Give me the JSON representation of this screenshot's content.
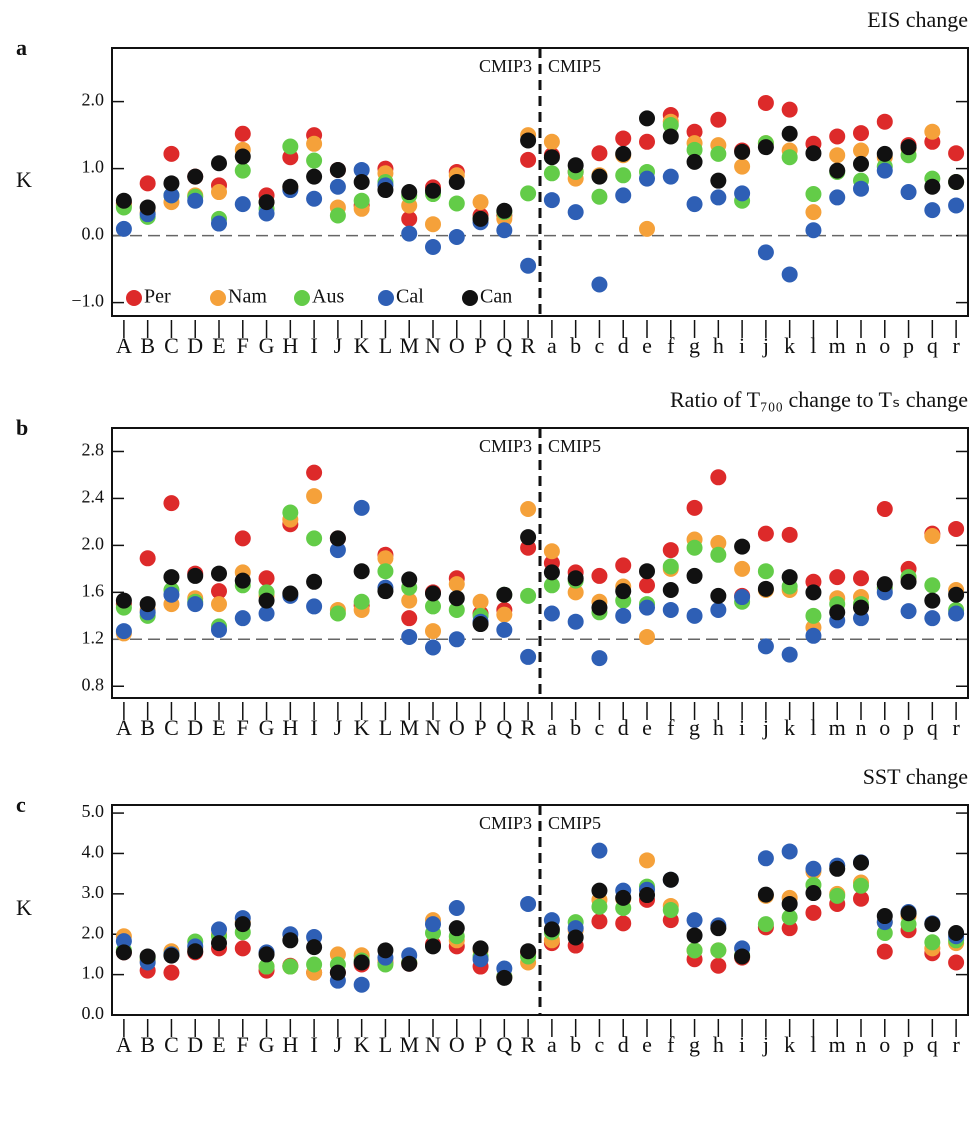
{
  "chart_data": [
    {
      "type": "scatter",
      "panel": "a",
      "title": "EIS change",
      "ylabel": "K",
      "categories": [
        "A",
        "B",
        "C",
        "D",
        "E",
        "F",
        "G",
        "H",
        "I",
        "J",
        "K",
        "L",
        "M",
        "N",
        "O",
        "P",
        "Q",
        "R",
        "a",
        "b",
        "c",
        "d",
        "e",
        "f",
        "g",
        "h",
        "i",
        "j",
        "k",
        "l",
        "m",
        "n",
        "o",
        "p",
        "q",
        "r"
      ],
      "groups": [
        {
          "name": "CMIP3",
          "count": 18
        },
        {
          "name": "CMIP5",
          "count": 18
        }
      ],
      "ylim": [
        -1.2,
        2.8
      ],
      "yticks": [
        {
          "value": -1,
          "label": "−1.0"
        },
        {
          "value": 0,
          "label": "0.0"
        },
        {
          "value": 1,
          "label": "1.0"
        },
        {
          "value": 2,
          "label": "2.0"
        }
      ],
      "hline": 0,
      "legend": "lower left",
      "series": [
        {
          "name": "Per",
          "color": "#dd2a2a",
          "values": [
            0.48,
            0.78,
            1.22,
            0.88,
            0.75,
            1.52,
            0.6,
            1.17,
            1.5,
            0.98,
            0.45,
            1.0,
            0.25,
            0.72,
            0.95,
            0.3,
            0.3,
            1.13,
            1.2,
            0.95,
            1.23,
            1.45,
            1.4,
            1.8,
            1.55,
            1.73,
            1.27,
            1.98,
            1.88,
            1.37,
            1.48,
            1.53,
            1.7,
            1.35,
            1.4,
            1.23
          ]
        },
        {
          "name": "Nam",
          "color": "#f5a13a",
          "values": [
            0.45,
            0.35,
            0.5,
            0.6,
            0.65,
            1.28,
            0.5,
            0.72,
            1.37,
            0.42,
            0.4,
            0.93,
            0.45,
            0.17,
            0.9,
            0.5,
            0.25,
            1.5,
            1.4,
            0.85,
            0.9,
            1.2,
            0.1,
            1.7,
            1.38,
            1.35,
            1.03,
            1.38,
            1.27,
            0.35,
            1.2,
            1.27,
            1.17,
            1.3,
            1.55,
            0.8
          ]
        },
        {
          "name": "Aus",
          "color": "#63cc48",
          "values": [
            0.42,
            0.28,
            0.6,
            0.58,
            0.25,
            0.97,
            0.4,
            1.33,
            1.12,
            0.3,
            0.52,
            0.8,
            0.6,
            0.62,
            0.48,
            0.25,
            0.35,
            0.63,
            0.93,
            0.95,
            0.58,
            0.9,
            0.95,
            1.65,
            1.28,
            1.22,
            0.52,
            1.38,
            1.17,
            0.62,
            0.95,
            0.82,
            1.03,
            1.2,
            0.85,
            0.8
          ]
        },
        {
          "name": "Cal",
          "color": "#2e5fb5",
          "values": [
            0.1,
            0.32,
            0.6,
            0.52,
            0.18,
            0.47,
            0.33,
            0.68,
            0.55,
            0.73,
            0.98,
            0.75,
            0.03,
            -0.17,
            -0.02,
            0.2,
            0.08,
            -0.45,
            0.53,
            0.35,
            -0.73,
            0.6,
            0.85,
            0.88,
            0.47,
            0.57,
            0.63,
            -0.25,
            -0.58,
            0.08,
            0.57,
            0.7,
            0.97,
            0.65,
            0.38,
            0.45
          ]
        },
        {
          "name": "Can",
          "color": "#111111",
          "values": [
            0.52,
            0.42,
            0.78,
            0.88,
            1.08,
            1.18,
            0.5,
            0.73,
            0.88,
            0.98,
            0.8,
            0.68,
            0.65,
            0.67,
            0.8,
            0.25,
            0.37,
            1.42,
            1.17,
            1.05,
            0.88,
            1.22,
            1.75,
            1.48,
            1.1,
            0.82,
            1.25,
            1.32,
            1.52,
            1.23,
            0.97,
            1.07,
            1.22,
            1.32,
            0.73,
            0.8
          ]
        }
      ]
    },
    {
      "type": "scatter",
      "panel": "b",
      "title": "Ratio of T₇₀₀ change to Tₛ change",
      "categories": [
        "A",
        "B",
        "C",
        "D",
        "E",
        "F",
        "G",
        "H",
        "I",
        "J",
        "K",
        "L",
        "M",
        "N",
        "O",
        "P",
        "Q",
        "R",
        "a",
        "b",
        "c",
        "d",
        "e",
        "f",
        "g",
        "h",
        "i",
        "j",
        "k",
        "l",
        "m",
        "n",
        "o",
        "p",
        "q",
        "r"
      ],
      "groups": [
        {
          "name": "CMIP3",
          "count": 18
        },
        {
          "name": "CMIP5",
          "count": 18
        }
      ],
      "ylim": [
        0.7,
        3.0
      ],
      "yticks": [
        0.8,
        1.2,
        1.6,
        {
          "value": 2,
          "label": "2.0"
        },
        2.4,
        2.8
      ],
      "hline": 1.2,
      "series": [
        {
          "color": "#dd2a2a",
          "values": [
            1.5,
            1.89,
            2.36,
            1.76,
            1.61,
            2.06,
            1.72,
            2.18,
            2.62,
            2.06,
            1.49,
            1.92,
            1.38,
            1.6,
            1.72,
            1.42,
            1.45,
            1.98,
            1.85,
            1.77,
            1.74,
            1.83,
            1.66,
            1.96,
            2.32,
            2.58,
            1.57,
            2.1,
            2.09,
            1.69,
            1.73,
            1.72,
            2.31,
            1.8,
            2.1,
            2.14
          ]
        },
        {
          "color": "#f5a13a",
          "values": [
            1.25,
            1.45,
            1.5,
            1.55,
            1.5,
            1.77,
            1.57,
            2.22,
            2.42,
            1.45,
            1.45,
            1.89,
            1.53,
            1.27,
            1.67,
            1.52,
            1.41,
            2.31,
            1.95,
            1.6,
            1.52,
            1.65,
            1.22,
            1.8,
            2.05,
            2.02,
            1.8,
            1.62,
            1.62,
            1.3,
            1.55,
            1.56,
            1.63,
            1.72,
            2.08,
            1.62
          ]
        },
        {
          "color": "#63cc48",
          "values": [
            1.47,
            1.4,
            1.62,
            1.52,
            1.31,
            1.66,
            1.6,
            2.28,
            2.06,
            1.42,
            1.52,
            1.78,
            1.64,
            1.48,
            1.45,
            1.4,
            1.58,
            1.57,
            1.66,
            1.7,
            1.43,
            1.53,
            1.5,
            1.82,
            1.98,
            1.92,
            1.52,
            1.78,
            1.65,
            1.4,
            1.5,
            1.5,
            1.64,
            1.73,
            1.66,
            1.45
          ]
        },
        {
          "color": "#2e5fb5",
          "values": [
            1.27,
            1.43,
            1.58,
            1.5,
            1.28,
            1.38,
            1.42,
            1.57,
            1.48,
            1.96,
            2.32,
            1.64,
            1.22,
            1.13,
            1.2,
            1.35,
            1.28,
            1.05,
            1.42,
            1.35,
            1.04,
            1.4,
            1.47,
            1.45,
            1.4,
            1.45,
            1.56,
            1.14,
            1.07,
            1.23,
            1.36,
            1.38,
            1.6,
            1.44,
            1.38,
            1.42
          ]
        },
        {
          "color": "#111111",
          "values": [
            1.53,
            1.5,
            1.73,
            1.74,
            1.76,
            1.7,
            1.53,
            1.59,
            1.69,
            2.06,
            1.78,
            1.61,
            1.71,
            1.59,
            1.55,
            1.33,
            1.58,
            2.07,
            1.77,
            1.72,
            1.47,
            1.61,
            1.78,
            1.62,
            1.74,
            1.57,
            1.99,
            1.63,
            1.73,
            1.6,
            1.43,
            1.47,
            1.67,
            1.69,
            1.53,
            1.58
          ]
        }
      ]
    },
    {
      "type": "scatter",
      "panel": "c",
      "title": "SST change",
      "ylabel": "K",
      "categories": [
        "A",
        "B",
        "C",
        "D",
        "E",
        "F",
        "G",
        "H",
        "I",
        "J",
        "K",
        "L",
        "M",
        "N",
        "O",
        "P",
        "Q",
        "R",
        "a",
        "b",
        "c",
        "d",
        "e",
        "f",
        "g",
        "h",
        "i",
        "j",
        "k",
        "l",
        "m",
        "n",
        "o",
        "p",
        "q",
        "r"
      ],
      "groups": [
        {
          "name": "CMIP3",
          "count": 18
        },
        {
          "name": "CMIP5",
          "count": 18
        }
      ],
      "ylim": [
        0,
        5.2
      ],
      "yticks": [
        {
          "value": 0,
          "label": "0.0"
        },
        {
          "value": 1,
          "label": "1.0"
        },
        {
          "value": 2,
          "label": "2.0"
        },
        {
          "value": 3,
          "label": "3.0"
        },
        {
          "value": 4,
          "label": "4.0"
        },
        {
          "value": 5,
          "label": "5.0"
        }
      ],
      "series": [
        {
          "color": "#dd2a2a",
          "values": [
            1.55,
            1.1,
            1.05,
            1.55,
            1.65,
            1.65,
            1.1,
            1.22,
            1.05,
            1.05,
            1.25,
            1.3,
            1.27,
            1.75,
            1.7,
            1.2,
            0.95,
            1.55,
            1.78,
            1.72,
            2.32,
            2.27,
            2.85,
            2.35,
            1.38,
            1.22,
            1.42,
            2.17,
            2.15,
            2.53,
            2.75,
            2.88,
            1.57,
            2.1,
            1.53,
            1.3
          ]
        },
        {
          "color": "#f5a13a",
          "values": [
            1.95,
            1.35,
            1.58,
            1.65,
            2.0,
            2.3,
            1.2,
            1.2,
            1.05,
            1.5,
            1.48,
            1.35,
            1.3,
            2.35,
            1.85,
            1.6,
            0.93,
            1.3,
            1.85,
            2.1,
            2.85,
            2.88,
            3.83,
            2.7,
            1.6,
            1.6,
            1.45,
            2.95,
            2.9,
            3.55,
            3.0,
            3.28,
            2.3,
            2.45,
            1.65,
            1.78
          ]
        },
        {
          "color": "#63cc48",
          "values": [
            1.6,
            1.4,
            1.5,
            1.82,
            1.95,
            2.05,
            1.2,
            1.2,
            1.25,
            1.25,
            1.35,
            1.25,
            1.3,
            2.03,
            1.95,
            1.45,
            0.95,
            1.45,
            2.05,
            2.3,
            2.68,
            2.65,
            3.18,
            2.6,
            1.6,
            1.6,
            1.48,
            2.25,
            2.42,
            3.22,
            2.95,
            3.2,
            2.03,
            2.25,
            1.8,
            1.85
          ]
        },
        {
          "color": "#2e5fb5",
          "values": [
            1.83,
            1.3,
            1.5,
            1.7,
            2.12,
            2.4,
            1.55,
            2.0,
            1.93,
            0.85,
            0.75,
            1.42,
            1.48,
            2.25,
            2.65,
            1.38,
            1.15,
            2.75,
            2.35,
            2.15,
            4.07,
            3.08,
            3.1,
            3.35,
            2.35,
            2.22,
            1.65,
            3.88,
            4.05,
            3.62,
            3.7,
            3.78,
            2.3,
            2.55,
            2.27,
            1.95
          ]
        },
        {
          "color": "#111111",
          "values": [
            1.55,
            1.45,
            1.47,
            1.58,
            1.78,
            2.25,
            1.5,
            1.85,
            1.68,
            1.05,
            1.3,
            1.6,
            1.27,
            1.7,
            2.15,
            1.65,
            0.92,
            1.58,
            2.12,
            1.92,
            3.08,
            2.9,
            2.97,
            3.35,
            1.97,
            2.15,
            1.45,
            2.98,
            2.75,
            3.02,
            3.62,
            3.77,
            2.45,
            2.52,
            2.25,
            2.03
          ]
        }
      ]
    }
  ]
}
